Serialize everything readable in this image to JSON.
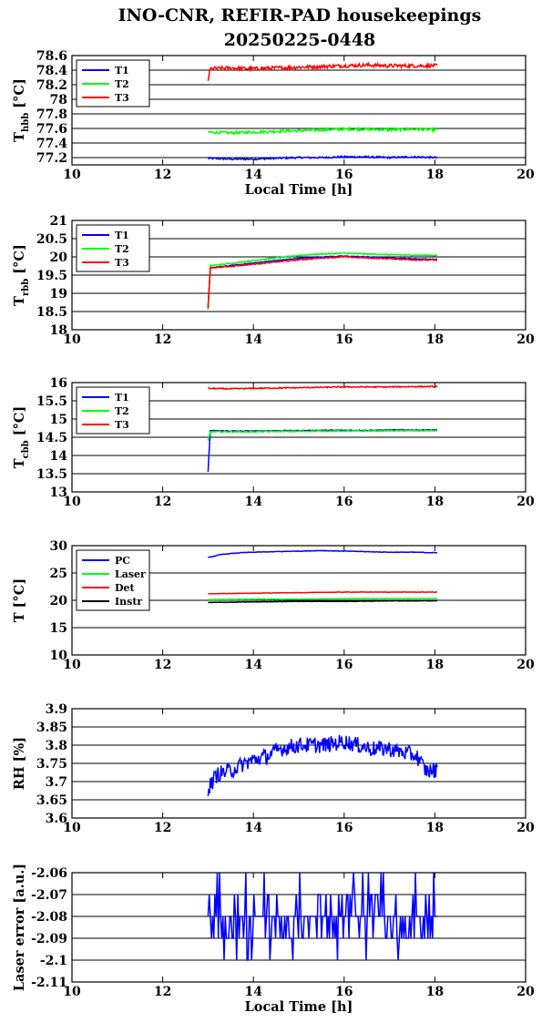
{
  "page": {
    "title_line1": "INO-CNR, REFIR-PAD housekeepings",
    "title_line2": "20250225-0448"
  },
  "chart_data": [
    {
      "type": "line",
      "id": "hbb",
      "ylabel_main": "T",
      "ylabel_sub": "hbb",
      "ylabel_unit": "[°C]",
      "xlabel": "Local Time [h]",
      "xlim": [
        10,
        20
      ],
      "ylim": [
        77.1,
        78.6
      ],
      "x_ticks": [
        "10",
        "12",
        "14",
        "16",
        "18",
        "20"
      ],
      "y_ticks": [
        "77.2",
        "77.4",
        "77.6",
        "77.8",
        "78",
        "78.2",
        "78.4",
        "78.6"
      ],
      "y_tick_values": [
        77.2,
        77.4,
        77.6,
        77.8,
        78.0,
        78.2,
        78.4,
        78.6
      ],
      "grid": "horizontal",
      "legend_position": "top-left",
      "series": [
        {
          "name": "T1",
          "color": "#0000ff",
          "x": [
            13.0,
            13.5,
            14.0,
            14.5,
            15.0,
            15.5,
            16.0,
            16.5,
            17.0,
            17.5,
            18.05
          ],
          "y": [
            77.19,
            77.18,
            77.18,
            77.19,
            77.2,
            77.2,
            77.21,
            77.21,
            77.2,
            77.21,
            77.2
          ],
          "noise": 0.012
        },
        {
          "name": "T2",
          "color": "#00ff00",
          "x": [
            13.0,
            13.5,
            14.0,
            14.5,
            15.0,
            15.5,
            16.0,
            16.5,
            17.0,
            17.5,
            18.05
          ],
          "y": [
            77.55,
            77.54,
            77.55,
            77.56,
            77.57,
            77.58,
            77.59,
            77.59,
            77.58,
            77.59,
            77.58
          ],
          "noise": 0.018
        },
        {
          "name": "T3",
          "color": "#ff0000",
          "x": [
            13.0,
            13.05,
            13.5,
            14.0,
            14.5,
            15.0,
            15.5,
            16.0,
            16.5,
            17.0,
            17.5,
            18.05
          ],
          "y": [
            78.26,
            78.42,
            78.43,
            78.42,
            78.43,
            78.44,
            78.45,
            78.46,
            78.47,
            78.46,
            78.46,
            78.46
          ],
          "noise": 0.025
        }
      ]
    },
    {
      "type": "line",
      "id": "rbb",
      "ylabel_main": "T",
      "ylabel_sub": "rbb",
      "ylabel_unit": "[°C]",
      "xlabel": "",
      "xlim": [
        10,
        20
      ],
      "ylim": [
        18,
        21
      ],
      "x_ticks": [
        "10",
        "12",
        "14",
        "16",
        "18",
        "20"
      ],
      "y_ticks": [
        "18",
        "18.5",
        "19",
        "19.5",
        "20",
        "20.5",
        "21"
      ],
      "y_tick_values": [
        18,
        18.5,
        19,
        19.5,
        20,
        20.5,
        21
      ],
      "grid": "horizontal",
      "legend_position": "top-left",
      "series": [
        {
          "name": "T1",
          "color": "#0000ff",
          "x": [
            13.0,
            13.05,
            13.5,
            14.0,
            14.5,
            15.0,
            15.5,
            16.0,
            16.5,
            17.0,
            17.5,
            18.05
          ],
          "y": [
            18.6,
            19.7,
            19.76,
            19.83,
            19.9,
            19.96,
            20.0,
            20.02,
            20.0,
            19.97,
            19.95,
            19.93
          ],
          "noise": 0.012
        },
        {
          "name": "T2",
          "color": "#00ff00",
          "x": [
            13.0,
            13.05,
            13.5,
            14.0,
            14.5,
            15.0,
            15.5,
            16.0,
            16.5,
            17.0,
            17.5,
            18.05
          ],
          "y": [
            18.55,
            19.76,
            19.82,
            19.9,
            19.97,
            20.04,
            20.08,
            20.1,
            20.08,
            20.06,
            20.05,
            20.04
          ],
          "noise": 0.015
        },
        {
          "name": "T3",
          "color": "#ff0000",
          "x": [
            13.0,
            13.05,
            13.5,
            14.0,
            14.5,
            15.0,
            15.5,
            16.0,
            16.5,
            17.0,
            17.5,
            18.05
          ],
          "y": [
            18.6,
            19.7,
            19.74,
            19.8,
            19.86,
            19.92,
            19.97,
            20.0,
            19.97,
            19.95,
            19.92,
            19.91
          ],
          "noise": 0.015
        }
      ]
    },
    {
      "type": "line",
      "id": "cbb",
      "ylabel_main": "T",
      "ylabel_sub": "cbb",
      "ylabel_unit": "[°C]",
      "xlabel": "",
      "xlim": [
        10,
        20
      ],
      "ylim": [
        13,
        16
      ],
      "x_ticks": [
        "10",
        "12",
        "14",
        "16",
        "18",
        "20"
      ],
      "y_ticks": [
        "13",
        "13.5",
        "14",
        "14.5",
        "15",
        "15.5",
        "16"
      ],
      "y_tick_values": [
        13,
        13.5,
        14,
        14.5,
        15,
        15.5,
        16
      ],
      "grid": "horizontal",
      "legend_position": "top-left",
      "series": [
        {
          "name": "T1",
          "color": "#0000ff",
          "x": [
            13.0,
            13.05,
            13.5,
            14.0,
            14.5,
            15.0,
            15.5,
            16.0,
            16.5,
            17.0,
            17.5,
            18.05
          ],
          "y": [
            13.55,
            14.68,
            14.67,
            14.67,
            14.68,
            14.68,
            14.69,
            14.69,
            14.69,
            14.7,
            14.7,
            14.7
          ],
          "noise": 0.012
        },
        {
          "name": "T2",
          "color": "#00ff00",
          "x": [
            13.0,
            13.05,
            13.5,
            14.0,
            14.5,
            15.0,
            15.5,
            16.0,
            16.5,
            17.0,
            17.5,
            18.05
          ],
          "y": [
            14.4,
            14.65,
            14.65,
            14.65,
            14.66,
            14.66,
            14.67,
            14.67,
            14.67,
            14.68,
            14.68,
            14.68
          ],
          "noise": 0.015
        },
        {
          "name": "T3",
          "color": "#ff0000",
          "x": [
            13.0,
            13.5,
            14.0,
            14.5,
            15.0,
            15.5,
            16.0,
            16.5,
            17.0,
            17.5,
            18.05
          ],
          "y": [
            15.84,
            15.83,
            15.84,
            15.85,
            15.86,
            15.87,
            15.88,
            15.88,
            15.88,
            15.89,
            15.89
          ],
          "noise": 0.015
        }
      ]
    },
    {
      "type": "line",
      "id": "temps",
      "ylabel_main": "T [°C]",
      "ylabel_sub": "",
      "ylabel_unit": "",
      "xlabel": "",
      "xlim": [
        10,
        20
      ],
      "ylim": [
        10,
        30
      ],
      "x_ticks": [
        "10",
        "12",
        "14",
        "16",
        "18",
        "20"
      ],
      "y_ticks": [
        "10",
        "15",
        "20",
        "25",
        "30"
      ],
      "y_tick_values": [
        10,
        15,
        20,
        25,
        30
      ],
      "grid": "horizontal",
      "legend_position": "top-left",
      "series": [
        {
          "name": "PC",
          "color": "#0000ff",
          "x": [
            13.0,
            13.3,
            13.7,
            14.0,
            14.5,
            15.0,
            15.5,
            16.0,
            16.5,
            17.0,
            17.5,
            18.05
          ],
          "y": [
            27.8,
            28.4,
            28.7,
            28.8,
            28.9,
            29.0,
            29.1,
            29.0,
            28.9,
            28.8,
            28.8,
            28.7
          ],
          "noise": 0.05
        },
        {
          "name": "Laser",
          "color": "#00ff00",
          "x": [
            13.0,
            14.0,
            15.0,
            16.0,
            17.0,
            18.05
          ],
          "y": [
            20.1,
            20.2,
            20.2,
            20.3,
            20.3,
            20.3
          ],
          "noise": 0.04
        },
        {
          "name": "Det",
          "color": "#ff0000",
          "x": [
            13.0,
            14.0,
            15.0,
            16.0,
            17.0,
            18.05
          ],
          "y": [
            21.2,
            21.3,
            21.4,
            21.5,
            21.5,
            21.5
          ],
          "noise": 0.03
        },
        {
          "name": "Instr",
          "color": "#000000",
          "x": [
            13.0,
            14.0,
            15.0,
            16.0,
            17.0,
            18.05
          ],
          "y": [
            19.6,
            19.7,
            19.8,
            19.8,
            19.9,
            19.9
          ],
          "noise": 0.04
        }
      ]
    },
    {
      "type": "line",
      "id": "rh",
      "ylabel_main": "RH [%]",
      "ylabel_sub": "",
      "ylabel_unit": "",
      "xlabel": "",
      "xlim": [
        10,
        20
      ],
      "ylim": [
        3.6,
        3.9
      ],
      "x_ticks": [
        "10",
        "12",
        "14",
        "16",
        "18",
        "20"
      ],
      "y_ticks": [
        "3.6",
        "3.65",
        "3.7",
        "3.75",
        "3.8",
        "3.85",
        "3.9"
      ],
      "y_tick_values": [
        3.6,
        3.65,
        3.7,
        3.75,
        3.8,
        3.85,
        3.9
      ],
      "grid": "horizontal",
      "legend_position": "none",
      "series": [
        {
          "name": "",
          "color": "#0000ff",
          "x": [
            13.0,
            13.2,
            13.5,
            13.8,
            14.0,
            14.3,
            14.6,
            15.0,
            15.3,
            15.6,
            16.0,
            16.3,
            16.6,
            17.0,
            17.3,
            17.6,
            17.8,
            18.05
          ],
          "y": [
            3.68,
            3.72,
            3.73,
            3.75,
            3.76,
            3.77,
            3.79,
            3.8,
            3.8,
            3.8,
            3.81,
            3.8,
            3.79,
            3.79,
            3.78,
            3.77,
            3.73,
            3.73
          ],
          "noise": 0.022
        }
      ]
    },
    {
      "type": "line",
      "id": "laser",
      "ylabel_main": "Laser error [a.u.]",
      "ylabel_sub": "",
      "ylabel_unit": "",
      "xlabel": "Local Time [h]",
      "xlim": [
        10,
        20
      ],
      "ylim": [
        -2.11,
        -2.06
      ],
      "x_ticks": [
        "10",
        "12",
        "14",
        "16",
        "18",
        "20"
      ],
      "y_ticks": [
        "-2.11",
        "-2.1",
        "-2.09",
        "-2.08",
        "-2.07",
        "-2.06"
      ],
      "y_tick_values": [
        -2.11,
        -2.1,
        -2.09,
        -2.08,
        -2.07,
        -2.06
      ],
      "grid": "horizontal",
      "legend_position": "none",
      "series": [
        {
          "name": "",
          "color": "#0000ff",
          "levels": [
            -2.06,
            -2.07,
            -2.08,
            -2.09,
            -2.1
          ],
          "x": [
            13.0,
            18.05
          ]
        }
      ]
    }
  ]
}
